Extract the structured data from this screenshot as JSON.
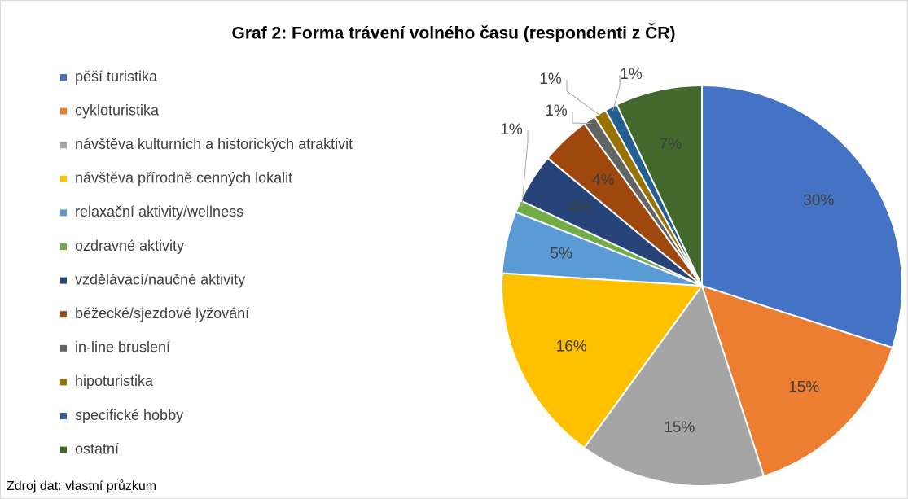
{
  "chart_data": {
    "type": "pie",
    "title": "Graf 2: Forma trávení volného času (respondenti z ČR)",
    "source": "Zdroj dat: vlastní průzkum",
    "categories": [
      "pěší turistika",
      "cykloturistika",
      "návštěva kulturních a historických atraktivit",
      "návštěva přírodně cenných lokalit",
      "relaxační aktivity/wellness",
      "ozdravné aktivity",
      "vzdělávací/naučné aktivity",
      "běžecké/sjezdové lyžování",
      "in-line bruslení",
      "hipoturistika",
      "specifické hobby",
      "ostatní"
    ],
    "values": [
      30,
      15,
      15,
      16,
      5,
      1,
      4,
      4,
      1,
      1,
      1,
      7
    ],
    "value_labels": [
      "30%",
      "15%",
      "15%",
      "16%",
      "5%",
      "1%",
      "4%",
      "4%",
      "1%",
      "1%",
      "1%",
      "7%"
    ],
    "colors": [
      "#4472c4",
      "#ed7d31",
      "#a5a5a5",
      "#ffc000",
      "#5b9bd5",
      "#70ad47",
      "#264478",
      "#9e480e",
      "#636363",
      "#997300",
      "#255e91",
      "#43682b"
    ],
    "legend": "left"
  }
}
